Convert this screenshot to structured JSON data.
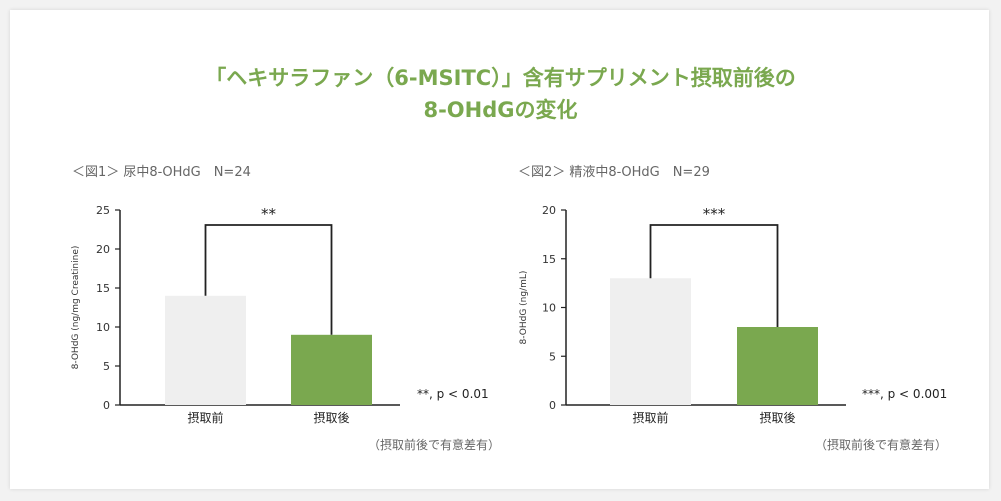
{
  "title": {
    "line1": "「ヘキサラファン（6-MSITC）」含有サプリメント摂取前後の",
    "line2": "8-OHdGの変化"
  },
  "colors": {
    "title": "#7aa84f",
    "before_bar": "#efefef",
    "after_bar": "#7aa84f",
    "axis": "#222222"
  },
  "chart_data": [
    {
      "type": "bar",
      "caption": "＜図1＞ 尿中8-OHdG　N=24",
      "categories": [
        "摂取前",
        "摂取後"
      ],
      "values": [
        14,
        9
      ],
      "ylabel": "8-OHdG (ng/mg Creatinine)",
      "ylim": [
        0,
        25
      ],
      "yticks": [
        "0",
        "5",
        "10",
        "15",
        "20",
        "25"
      ],
      "significance": "**",
      "pvalue_note": "**, p < 0.01",
      "footnote": "（摂取前後で有意差有）"
    },
    {
      "type": "bar",
      "caption": "＜図2＞ 精液中8-OHdG　N=29",
      "categories": [
        "摂取前",
        "摂取後"
      ],
      "values": [
        13,
        8
      ],
      "ylabel": "8-OHdG (ng/mL)",
      "ylim": [
        0,
        20
      ],
      "yticks": [
        "0",
        "5",
        "10",
        "15",
        "20"
      ],
      "significance": "***",
      "pvalue_note": "***, p < 0.001",
      "footnote": "（摂取前後で有意差有）"
    }
  ]
}
